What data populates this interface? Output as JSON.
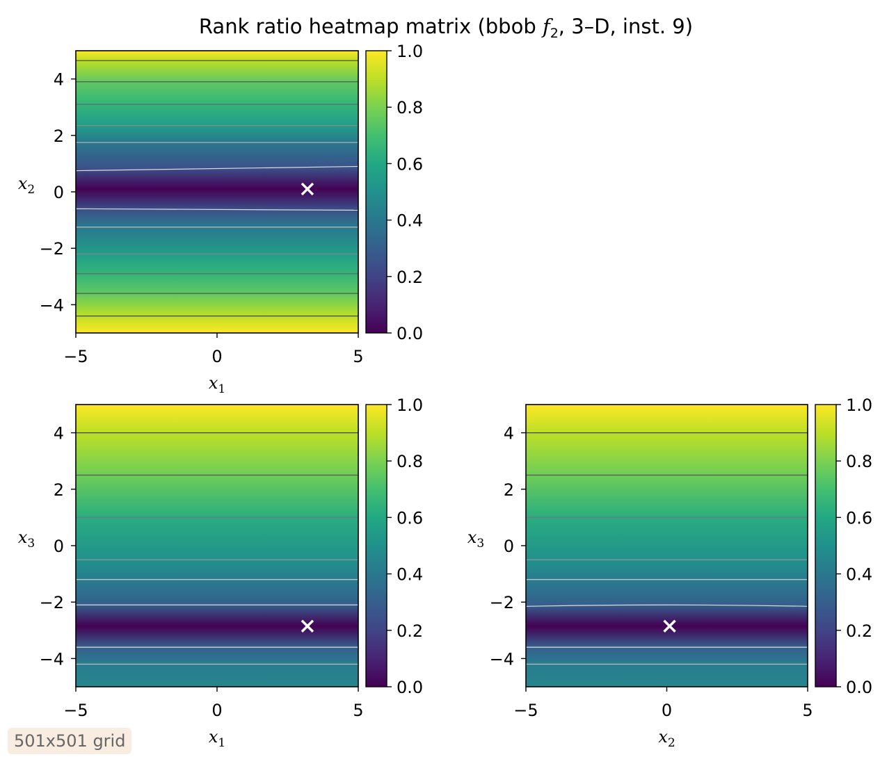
{
  "figure": {
    "title_prefix": "Rank ratio heatmap matrix (bbob ",
    "title_func": "f",
    "title_func_sub": "2",
    "title_suffix": ", 3–D, inst. 9)",
    "badge": "501x501 grid"
  },
  "colormap": "viridis",
  "chart_data": [
    {
      "type": "heatmap",
      "xlabel": "x",
      "xlabel_sub": "1",
      "ylabel": "x",
      "ylabel_sub": "2",
      "xlim": [
        -5,
        5
      ],
      "ylim": [
        -5,
        5
      ],
      "x_ticks": [
        -5,
        0,
        5
      ],
      "y_ticks": [
        -4,
        -2,
        0,
        2,
        4
      ],
      "x_tick_labels": [
        "−5",
        "0",
        "5"
      ],
      "y_tick_labels": [
        "−4",
        "−2",
        "0",
        "2",
        "4"
      ],
      "colorbar": {
        "range": [
          0,
          1
        ],
        "ticks": [
          0.0,
          0.2,
          0.4,
          0.6,
          0.8,
          1.0
        ],
        "tick_labels": [
          "0.0",
          "0.2",
          "0.4",
          "0.6",
          "0.8",
          "1.0"
        ]
      },
      "value_profile_along_y": [
        [
          -5,
          1.0
        ],
        [
          -4.4,
          0.9
        ],
        [
          -3.6,
          0.75
        ],
        [
          -2.9,
          0.65
        ],
        [
          -2.2,
          0.55
        ],
        [
          -1.25,
          0.4
        ],
        [
          -0.65,
          0.25
        ],
        [
          0.1,
          0.0
        ],
        [
          0.85,
          0.25
        ],
        [
          1.75,
          0.4
        ],
        [
          2.35,
          0.55
        ],
        [
          3.1,
          0.65
        ],
        [
          3.9,
          0.75
        ],
        [
          4.65,
          0.9
        ],
        [
          5,
          1.0
        ]
      ],
      "contours": [
        {
          "y_left": 4.65,
          "y_right": 4.65,
          "color": "#444444"
        },
        {
          "y_left": 3.9,
          "y_right": 3.9,
          "color": "#555555"
        },
        {
          "y_left": 3.1,
          "y_right": 3.1,
          "color": "#666666"
        },
        {
          "y_left": 2.35,
          "y_right": 2.35,
          "color": "#888888"
        },
        {
          "y_left": 1.75,
          "y_right": 1.75,
          "color": "#bbbbbb"
        },
        {
          "y_left": 0.75,
          "y_right": 0.9,
          "color": "#dddddd"
        },
        {
          "y_left": -0.6,
          "y_right": -0.65,
          "color": "#dddddd"
        },
        {
          "y_left": -1.25,
          "y_right": -1.25,
          "color": "#bbbbbb"
        },
        {
          "y_left": -2.2,
          "y_right": -2.2,
          "color": "#888888"
        },
        {
          "y_left": -2.9,
          "y_right": -2.9,
          "color": "#666666"
        },
        {
          "y_left": -3.6,
          "y_right": -3.6,
          "color": "#555555"
        },
        {
          "y_left": -4.4,
          "y_right": -4.4,
          "color": "#444444"
        }
      ],
      "optimum_marker": {
        "x": 3.2,
        "y": 0.1
      }
    },
    {
      "type": "heatmap",
      "xlabel": "x",
      "xlabel_sub": "1",
      "ylabel": "x",
      "ylabel_sub": "3",
      "xlim": [
        -5,
        5
      ],
      "ylim": [
        -5,
        5
      ],
      "x_ticks": [
        -5,
        0,
        5
      ],
      "y_ticks": [
        -4,
        -2,
        0,
        2,
        4
      ],
      "x_tick_labels": [
        "−5",
        "0",
        "5"
      ],
      "y_tick_labels": [
        "−4",
        "−2",
        "0",
        "2",
        "4"
      ],
      "colorbar": {
        "range": [
          0,
          1
        ],
        "ticks": [
          0.0,
          0.2,
          0.4,
          0.6,
          0.8,
          1.0
        ],
        "tick_labels": [
          "0.0",
          "0.2",
          "0.4",
          "0.6",
          "0.8",
          "1.0"
        ]
      },
      "value_profile_along_y": [
        [
          -5,
          0.45
        ],
        [
          -4.2,
          0.42
        ],
        [
          -3.6,
          0.3
        ],
        [
          -2.85,
          0.0
        ],
        [
          -2.1,
          0.3
        ],
        [
          -1.2,
          0.42
        ],
        [
          -0.5,
          0.5
        ],
        [
          1.0,
          0.62
        ],
        [
          2.5,
          0.78
        ],
        [
          4.0,
          0.9
        ],
        [
          5,
          1.0
        ]
      ],
      "contours": [
        {
          "y_left": 4.0,
          "y_right": 4.0,
          "color": "#444444"
        },
        {
          "y_left": 2.5,
          "y_right": 2.5,
          "color": "#555555"
        },
        {
          "y_left": 1.0,
          "y_right": 1.0,
          "color": "#777777"
        },
        {
          "y_left": -0.5,
          "y_right": -0.5,
          "color": "#999999"
        },
        {
          "y_left": -1.2,
          "y_right": -1.2,
          "color": "#cccccc"
        },
        {
          "y_left": -2.1,
          "y_right": -2.1,
          "color": "#dddddd"
        },
        {
          "y_left": -3.6,
          "y_right": -3.6,
          "color": "#dddddd"
        },
        {
          "y_left": -4.2,
          "y_right": -4.2,
          "color": "#bbbbbb"
        }
      ],
      "optimum_marker": {
        "x": 3.2,
        "y": -2.85
      }
    },
    {
      "type": "heatmap",
      "xlabel": "x",
      "xlabel_sub": "2",
      "ylabel": "x",
      "ylabel_sub": "3",
      "xlim": [
        -5,
        5
      ],
      "ylim": [
        -5,
        5
      ],
      "x_ticks": [
        -5,
        0,
        5
      ],
      "y_ticks": [
        -4,
        -2,
        0,
        2,
        4
      ],
      "x_tick_labels": [
        "−5",
        "0",
        "5"
      ],
      "y_tick_labels": [
        "−4",
        "−2",
        "0",
        "2",
        "4"
      ],
      "colorbar": {
        "range": [
          0,
          1
        ],
        "ticks": [
          0.0,
          0.2,
          0.4,
          0.6,
          0.8,
          1.0
        ],
        "tick_labels": [
          "0.0",
          "0.2",
          "0.4",
          "0.6",
          "0.8",
          "1.0"
        ]
      },
      "value_profile_along_y": [
        [
          -5,
          0.45
        ],
        [
          -4.2,
          0.42
        ],
        [
          -3.6,
          0.3
        ],
        [
          -2.85,
          0.0
        ],
        [
          -2.1,
          0.3
        ],
        [
          -1.2,
          0.42
        ],
        [
          -0.5,
          0.5
        ],
        [
          1.0,
          0.62
        ],
        [
          2.5,
          0.78
        ],
        [
          4.0,
          0.9
        ],
        [
          5,
          1.0
        ]
      ],
      "contours": [
        {
          "y_left": 4.0,
          "y_right": 4.0,
          "color": "#444444"
        },
        {
          "y_left": 2.5,
          "y_right": 2.5,
          "color": "#555555"
        },
        {
          "y_left": 1.0,
          "y_right": 1.0,
          "color": "#777777"
        },
        {
          "y_left": -0.5,
          "y_right": -0.5,
          "color": "#999999"
        },
        {
          "y_left": -1.2,
          "y_right": -1.2,
          "color": "#cccccc"
        },
        {
          "y_left": -2.15,
          "y_right": -2.15,
          "color": "#dddddd",
          "y_mid": -2.05
        },
        {
          "y_left": -3.6,
          "y_right": -3.6,
          "color": "#dddddd"
        },
        {
          "y_left": -4.2,
          "y_right": -4.2,
          "color": "#bbbbbb"
        }
      ],
      "optimum_marker": {
        "x": 0.1,
        "y": -2.85
      }
    }
  ]
}
